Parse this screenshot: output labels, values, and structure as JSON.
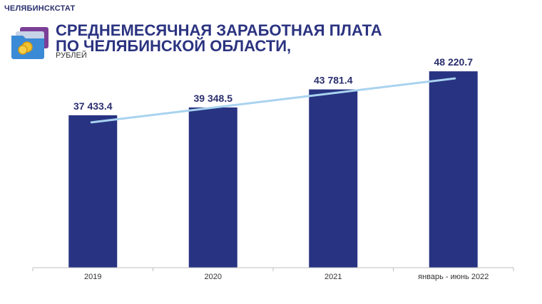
{
  "header": {
    "brand": "ЧЕЛЯБИНСКСТАТ",
    "title_line1": "СРЕДНЕМЕСЯЧНАЯ ЗАРАБОТНАЯ ПЛАТА",
    "title_line2": "ПО ЧЕЛЯБИНСКОЙ ОБЛАСТИ,",
    "subtitle": "РУБЛЕЙ",
    "logo_icon": "folder-coins-icon"
  },
  "colors": {
    "bar": "#283382",
    "trend": "#a9d3ef",
    "title": "#2b3380",
    "axis": "#bfbfbf"
  },
  "chart_data": {
    "type": "bar",
    "categories": [
      "2019",
      "2020",
      "2021",
      "январь - июнь 2022"
    ],
    "values": [
      37433.4,
      39348.5,
      43781.4,
      48220.7
    ],
    "value_labels": [
      "37 433.4",
      "39 348.5",
      "43 781.4",
      "48 220.7"
    ],
    "ylim": [
      0,
      50000
    ],
    "trend_line": true,
    "grid": false,
    "legend": "none"
  }
}
